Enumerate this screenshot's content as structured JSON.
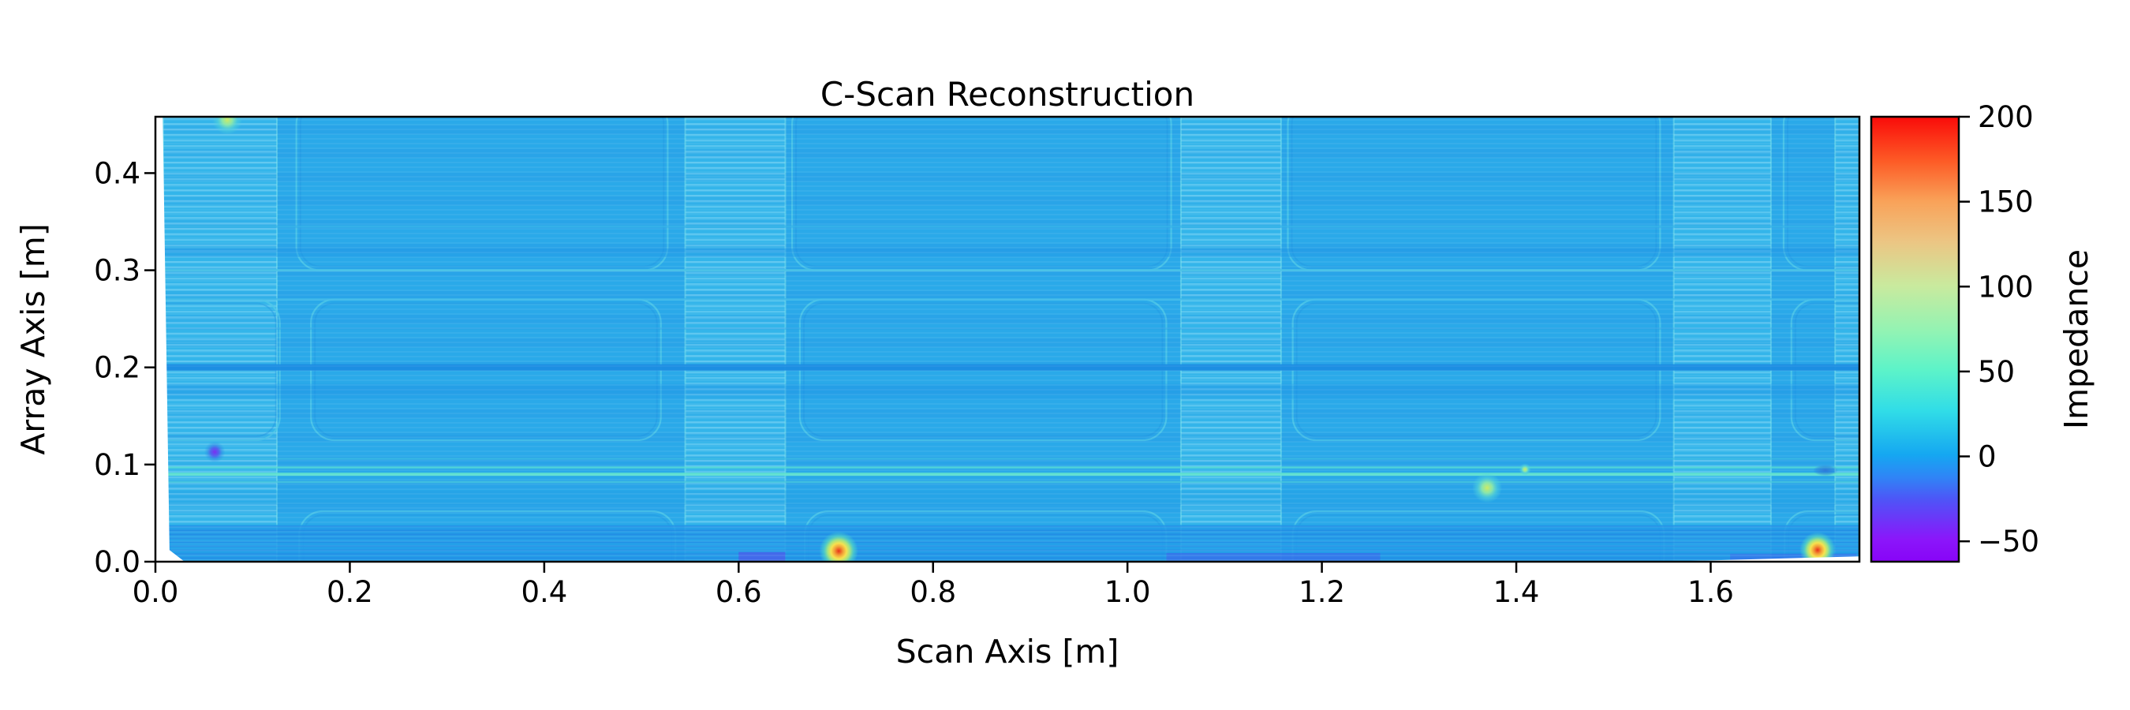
{
  "chart_data": {
    "type": "heatmap",
    "title": "C-Scan Reconstruction",
    "xlabel": "Scan Axis [m]",
    "ylabel": "Array Axis [m]",
    "colorbar_label": "Impedance",
    "xlim": [
      0,
      1.753
    ],
    "ylim": [
      0,
      0.458
    ],
    "grid": false,
    "x_ticks": {
      "values": [
        0,
        0.2,
        0.4,
        0.6,
        0.8,
        1.0,
        1.2,
        1.4,
        1.6
      ],
      "labels": [
        "0.0",
        "0.2",
        "0.4",
        "0.6",
        "0.8",
        "1.0",
        "1.2",
        "1.4",
        "1.6"
      ]
    },
    "y_ticks": {
      "values": [
        0,
        0.1,
        0.2,
        0.3,
        0.4
      ],
      "labels": [
        "0.0",
        "0.1",
        "0.2",
        "0.3",
        "0.4"
      ]
    },
    "colorbar": {
      "vmin": -62,
      "vmax": 200,
      "tick_values": [
        200,
        150,
        100,
        50,
        0,
        -50
      ],
      "tick_labels": [
        "200",
        "150",
        "100",
        "50",
        "0",
        "−50"
      ],
      "colormap": "rainbow",
      "gradient_top_to_bottom": [
        [
          "0%",
          "#fa0b09"
        ],
        [
          "10%",
          "#fd5b26"
        ],
        [
          "19%",
          "#f9a259"
        ],
        [
          "28%",
          "#ecc583"
        ],
        [
          "38%",
          "#c9ea9e"
        ],
        [
          "48%",
          "#93f3b3"
        ],
        [
          "57%",
          "#5cf3c9"
        ],
        [
          "66%",
          "#31dde7"
        ],
        [
          "76%",
          "#15a7f1"
        ],
        [
          "81%",
          "#2f85f6"
        ],
        [
          "86%",
          "#4e55f7"
        ],
        [
          "95%",
          "#8b16fa"
        ],
        [
          "100%",
          "#8804f7"
        ]
      ]
    },
    "base_color": "#2aa9e9",
    "textures": {
      "scanline": "rgba(255,255,255,0.055)",
      "band": "rgba(20,80,210,0.05)",
      "colstripe": "rgba(205,245,255,0.25)",
      "bottomstripe": "rgba(30,90,220,0.22)",
      "column_edge": "rgba(120,225,235,0.55)"
    },
    "structure": {
      "columns": {
        "color": "#33b5ea",
        "x_spans": [
          [
            0.008,
            0.125
          ],
          [
            0.545,
            0.648
          ],
          [
            1.055,
            1.158
          ],
          [
            1.562,
            1.662
          ],
          [
            1.728,
            1.753
          ]
        ]
      },
      "bays": {
        "stroke": "#4cc7e7",
        "inner_stroke": "#2196e2",
        "radius": 30,
        "rows": [
          {
            "y_span": [
              0.3,
              0.475
            ],
            "x_spans": [
              [
                0.145,
                0.527
              ],
              [
                0.655,
                1.045
              ],
              [
                1.165,
                1.548
              ],
              [
                1.675,
                1.8
              ]
            ]
          },
          {
            "y_span": [
              0.125,
              0.27
            ],
            "x_spans": [
              [
                -0.05,
                0.128
              ],
              [
                0.16,
                0.52
              ],
              [
                0.663,
                1.04
              ],
              [
                1.17,
                1.548
              ],
              [
                1.683,
                1.8
              ]
            ]
          },
          {
            "y_span": [
              -0.02,
              0.052
            ],
            "x_spans": [
              [
                0.148,
                0.535
              ],
              [
                0.668,
                1.04
              ],
              [
                1.17,
                1.552
              ],
              [
                1.676,
                1.8
              ]
            ]
          }
        ]
      },
      "h_lines": [
        {
          "y": 0.2,
          "h": 8,
          "color": "#1b8fe3",
          "opacity": 0.95
        },
        {
          "y": 0.175,
          "h": 20,
          "color": "#2098e7",
          "opacity": 0.35
        },
        {
          "y": 0.3,
          "h": 3,
          "color": "#4cc9e8",
          "opacity": 0.9
        },
        {
          "y": 0.27,
          "h": 3,
          "color": "#3fbde9",
          "opacity": 0.8
        },
        {
          "y": 0.345,
          "h": 3,
          "color": "#3cbae9",
          "opacity": 0.7
        },
        {
          "y": 0.318,
          "h": 11,
          "color": "#2199e6",
          "opacity": 0.45
        },
        {
          "y": 0.24,
          "h": 2.5,
          "color": "#2c9fe6",
          "opacity": 0.5
        },
        {
          "y": 0.09,
          "h": 4,
          "color": "#5fe0cf",
          "opacity": 0.95
        },
        {
          "y": 0.097,
          "h": 2.5,
          "color": "#59dcd4",
          "opacity": 0.8
        },
        {
          "y": 0.082,
          "h": 2.5,
          "color": "#4fd2dc",
          "opacity": 0.7
        },
        {
          "y": 0.106,
          "h": 2.5,
          "color": "#43c7e2",
          "opacity": 0.6
        },
        {
          "y": 0.066,
          "h": 18,
          "color": "#1f97e6",
          "opacity": 0.3
        }
      ],
      "bottom_band": {
        "y_span": [
          0,
          0.038
        ],
        "color": "#239fe9"
      },
      "bottom_smudges": [
        {
          "x_span": [
            0.6,
            0.648
          ],
          "y_span": [
            0,
            0.01
          ],
          "color": "rgba(100,60,240,0.50)"
        },
        {
          "x_span": [
            1.04,
            1.26
          ],
          "y_span": [
            0,
            0.009
          ],
          "color": "rgba(80,80,240,0.40)"
        },
        {
          "x_span": [
            1.62,
            1.75
          ],
          "y_span": [
            0,
            0.008
          ],
          "color": "rgba(80,80,240,0.35)"
        }
      ]
    },
    "defects": [
      {
        "x": 0.074,
        "y": 0.455,
        "r": 10,
        "kind": "high"
      },
      {
        "x": 0.061,
        "y": 0.113,
        "r": 7,
        "kind": "low"
      },
      {
        "x": 0.703,
        "y": 0.011,
        "r": 13,
        "kind": "hot"
      },
      {
        "x": 1.37,
        "y": 0.076,
        "r": 10,
        "kind": "high"
      },
      {
        "x": 1.71,
        "y": 0.012,
        "r": 12,
        "kind": "hot"
      },
      {
        "x": 1.718,
        "y": 0.094,
        "r": 8,
        "kind": "dark"
      },
      {
        "x": 1.409,
        "y": 0.095,
        "r": 4,
        "kind": "high"
      }
    ],
    "defect_palettes": {
      "hot": [
        [
          "0%",
          "#e93018",
          1
        ],
        [
          "22%",
          "#f29f38",
          1
        ],
        [
          "40%",
          "#f7e24f",
          1
        ],
        [
          "58%",
          "#a9e87d",
          0.95
        ],
        [
          "78%",
          "#55dcc4",
          0.6
        ],
        [
          "100%",
          "#55dcc4",
          0
        ]
      ],
      "high": [
        [
          "0%",
          "#cdeb66",
          1
        ],
        [
          "35%",
          "#8fe9a8",
          0.95
        ],
        [
          "68%",
          "#4fd2dc",
          0.6
        ],
        [
          "100%",
          "#4fd2dc",
          0
        ]
      ],
      "low": [
        [
          "0%",
          "#7c2ef2",
          1
        ],
        [
          "40%",
          "#5355ee",
          0.85
        ],
        [
          "75%",
          "#2f8ae6",
          0.4
        ],
        [
          "100%",
          "#2f8ae6",
          0
        ]
      ],
      "dark": [
        [
          "0%",
          "#2e72d6",
          0.9
        ],
        [
          "70%",
          "#2a7fdc",
          0.5
        ],
        [
          "100%",
          "#2a7fdc",
          0
        ]
      ]
    },
    "white_wedges": [
      [
        [
          0,
          0.475
        ],
        [
          0.0075,
          0.46
        ],
        [
          0.0145,
          0.012
        ],
        [
          0.03,
          0
        ],
        [
          0,
          0
        ]
      ],
      [
        [
          1.55,
          0
        ],
        [
          1.753,
          0.0055
        ],
        [
          1.753,
          0
        ]
      ]
    ]
  }
}
